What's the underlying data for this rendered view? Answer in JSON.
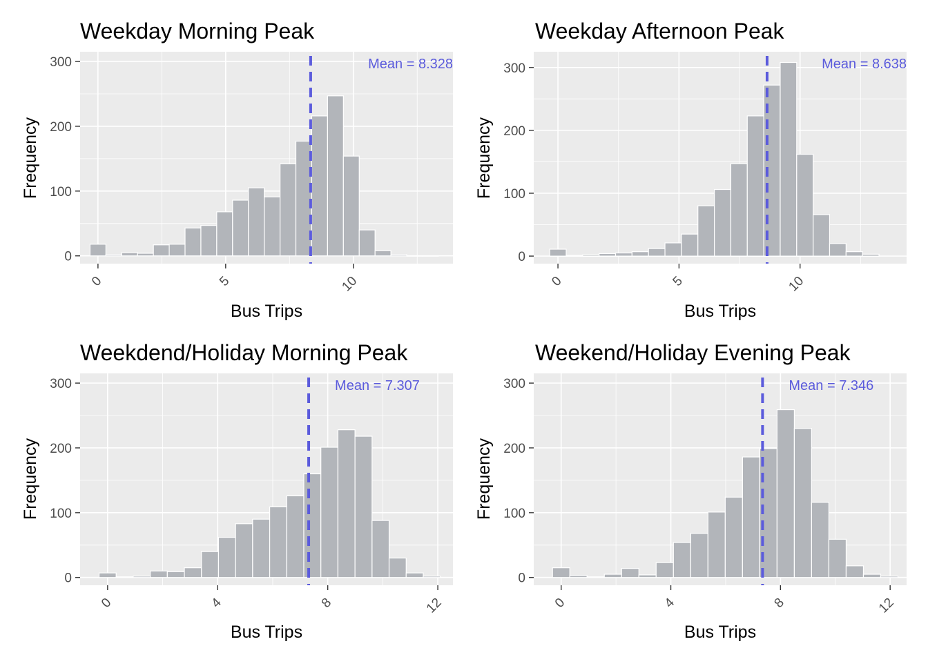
{
  "chart_data": [
    {
      "type": "bar",
      "title": "Weekday Morning Peak",
      "xlabel": "Bus Trips",
      "ylabel": "Frequency",
      "x_ticks": [
        0,
        5,
        10
      ],
      "y_ticks": [
        0,
        100,
        200,
        300
      ],
      "xlim": [
        -0.7,
        13.9
      ],
      "ylim": [
        -12,
        315
      ],
      "bin_width": 0.62,
      "bin_centers": [
        0,
        0.62,
        1.24,
        1.86,
        2.48,
        3.1,
        3.72,
        4.34,
        4.96,
        5.58,
        6.2,
        6.82,
        7.44,
        8.06,
        8.68,
        9.3,
        9.92,
        10.54,
        11.16,
        11.78,
        12.4,
        13.02
      ],
      "values": [
        18,
        2,
        5,
        4,
        17,
        18,
        43,
        47,
        68,
        86,
        105,
        91,
        142,
        177,
        216,
        247,
        154,
        40,
        8,
        2,
        0,
        0
      ],
      "mean": 8.328,
      "mean_label": "Mean = 8.328",
      "grid": true
    },
    {
      "type": "bar",
      "title": "Weekday Afternoon Peak",
      "xlabel": "Bus Trips",
      "ylabel": "Frequency",
      "x_ticks": [
        0,
        5,
        10
      ],
      "y_ticks": [
        0,
        100,
        200,
        300
      ],
      "xlim": [
        -1.0,
        14.4
      ],
      "ylim": [
        -12,
        325
      ],
      "bin_width": 0.68,
      "bin_centers": [
        0,
        0.68,
        1.36,
        2.04,
        2.72,
        3.4,
        4.08,
        4.76,
        5.44,
        6.12,
        6.8,
        7.48,
        8.16,
        8.84,
        9.52,
        10.2,
        10.88,
        11.56,
        12.24,
        12.92
      ],
      "values": [
        11,
        1,
        2,
        4,
        5,
        7,
        12,
        21,
        35,
        80,
        106,
        147,
        223,
        272,
        308,
        162,
        66,
        20,
        7,
        3
      ],
      "mean": 8.638,
      "mean_label": "Mean = 8.638",
      "grid": true
    },
    {
      "type": "bar",
      "title": "Weekdend/Holiday Morning Peak",
      "xlabel": "Bus Trips",
      "ylabel": "Frequency",
      "x_ticks": [
        0,
        4,
        8,
        12
      ],
      "y_ticks": [
        0,
        100,
        200,
        300
      ],
      "xlim": [
        -1.0,
        12.55
      ],
      "ylim": [
        -12,
        315
      ],
      "bin_width": 0.62,
      "bin_centers": [
        0,
        0.62,
        1.24,
        1.86,
        2.48,
        3.1,
        3.72,
        4.34,
        4.96,
        5.58,
        6.2,
        6.82,
        7.44,
        8.06,
        8.68,
        9.3,
        9.92,
        10.54,
        11.16,
        11.78
      ],
      "values": [
        7,
        1,
        2,
        10,
        9,
        15,
        40,
        62,
        83,
        90,
        109,
        126,
        160,
        201,
        228,
        218,
        88,
        30,
        7,
        2
      ],
      "mean": 7.307,
      "mean_label": "Mean = 7.307",
      "grid": true
    },
    {
      "type": "bar",
      "title": "Weekend/Holiday Evening Peak",
      "xlabel": "Bus Trips",
      "ylabel": "Frequency",
      "x_ticks": [
        0,
        4,
        8,
        12
      ],
      "y_ticks": [
        0,
        100,
        200,
        300
      ],
      "xlim": [
        -1.0,
        12.6
      ],
      "ylim": [
        -12,
        315
      ],
      "bin_width": 0.63,
      "bin_centers": [
        0,
        0.63,
        1.26,
        1.89,
        2.52,
        3.15,
        3.78,
        4.41,
        5.04,
        5.67,
        6.3,
        6.93,
        7.56,
        8.19,
        8.82,
        9.45,
        10.08,
        10.71,
        11.34,
        11.97
      ],
      "values": [
        15,
        3,
        1,
        5,
        14,
        4,
        23,
        54,
        68,
        101,
        124,
        186,
        199,
        259,
        230,
        116,
        59,
        18,
        5,
        2
      ],
      "mean": 7.346,
      "mean_label": "Mean = 7.346",
      "grid": true
    }
  ]
}
